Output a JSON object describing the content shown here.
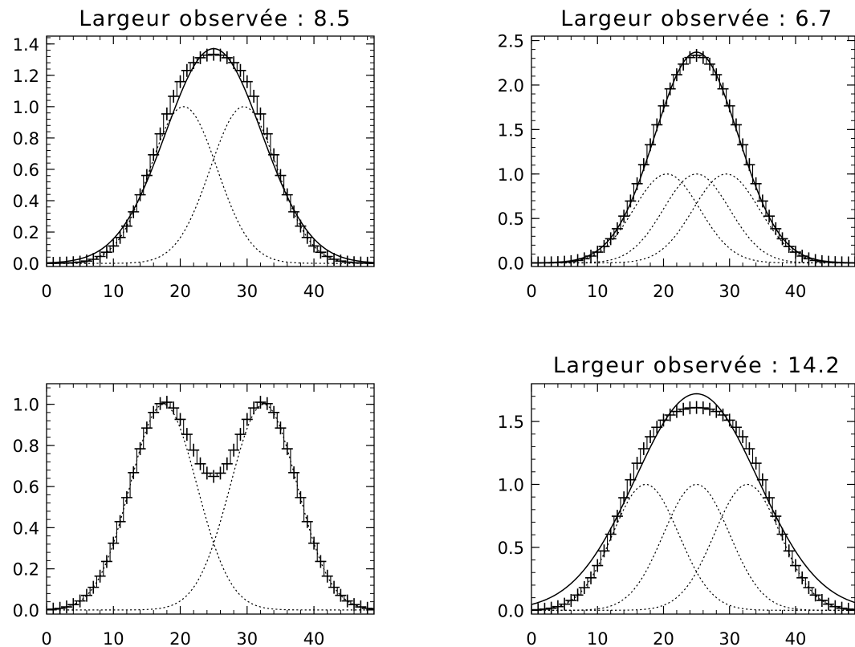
{
  "chart_data": [
    {
      "type": "line",
      "title": "Largeur observée :  8.5",
      "xlabel": "",
      "ylabel": "",
      "xlim": [
        0,
        49
      ],
      "ylim": [
        -0.02,
        1.45
      ],
      "xticks": [
        "0",
        "10",
        "20",
        "30",
        "40"
      ],
      "yticks": [
        "0.0",
        "0.2",
        "0.4",
        "0.6",
        "0.8",
        "1.0",
        "1.2",
        "1.4"
      ],
      "x_tick_values": [
        0,
        10,
        20,
        30,
        40
      ],
      "y_tick_values": [
        0.0,
        0.2,
        0.4,
        0.6,
        0.8,
        1.0,
        1.2,
        1.4
      ],
      "components": [
        {
          "center": 20.5,
          "sigma": 5.0,
          "amplitude": 1.0
        },
        {
          "center": 29.5,
          "sigma": 5.0,
          "amplitude": 1.0
        }
      ],
      "fit": {
        "center": 25,
        "sigma": 7.2,
        "amplitude": 1.37
      },
      "grid": false,
      "legend": "none"
    },
    {
      "type": "line",
      "title": "Largeur observée :  6.7",
      "xlabel": "",
      "ylabel": "",
      "xlim": [
        0,
        49
      ],
      "ylim": [
        -0.04,
        2.55
      ],
      "xticks": [
        "0",
        "10",
        "20",
        "30",
        "40"
      ],
      "yticks": [
        "0.0",
        "0.5",
        "1.0",
        "1.5",
        "2.0",
        "2.5"
      ],
      "x_tick_values": [
        0,
        10,
        20,
        30,
        40
      ],
      "y_tick_values": [
        0.0,
        0.5,
        1.0,
        1.5,
        2.0,
        2.5
      ],
      "components": [
        {
          "center": 20.5,
          "sigma": 5.0,
          "amplitude": 1.0
        },
        {
          "center": 25,
          "sigma": 5.0,
          "amplitude": 1.0
        },
        {
          "center": 29.5,
          "sigma": 5.0,
          "amplitude": 1.0
        }
      ],
      "fit": {
        "center": 25,
        "sigma": 6.3,
        "amplitude": 2.37
      },
      "grid": false,
      "legend": "none"
    },
    {
      "type": "line",
      "title": "",
      "xlabel": "",
      "ylabel": "",
      "xlim": [
        0,
        49
      ],
      "ylim": [
        -0.02,
        1.1
      ],
      "xticks": [
        "0",
        "10",
        "20",
        "30",
        "40"
      ],
      "yticks": [
        "0.0",
        "0.2",
        "0.4",
        "0.6",
        "0.8",
        "1.0"
      ],
      "x_tick_values": [
        0,
        10,
        20,
        30,
        40
      ],
      "y_tick_values": [
        0.0,
        0.2,
        0.4,
        0.6,
        0.8,
        1.0
      ],
      "components": [
        {
          "center": 17.5,
          "sigma": 5.0,
          "amplitude": 1.0
        },
        {
          "center": 32.5,
          "sigma": 5.0,
          "amplitude": 1.0
        }
      ],
      "fit": null,
      "grid": false,
      "legend": "none"
    },
    {
      "type": "line",
      "title": "Largeur observée : 14.2",
      "xlabel": "",
      "ylabel": "",
      "xlim": [
        0,
        49
      ],
      "ylim": [
        -0.03,
        1.8
      ],
      "xticks": [
        "0",
        "10",
        "20",
        "30",
        "40"
      ],
      "yticks": [
        "0.0",
        "0.5",
        "1.0",
        "1.5"
      ],
      "x_tick_values": [
        0,
        10,
        20,
        30,
        40
      ],
      "y_tick_values": [
        0.0,
        0.5,
        1.0,
        1.5
      ],
      "components": [
        {
          "center": 17.3,
          "sigma": 5.0,
          "amplitude": 1.0
        },
        {
          "center": 25,
          "sigma": 5.0,
          "amplitude": 1.0
        },
        {
          "center": 32.7,
          "sigma": 5.0,
          "amplitude": 1.0
        }
      ],
      "fit": {
        "center": 25,
        "sigma": 9.3,
        "amplitude": 1.72
      },
      "grid": false,
      "legend": "none"
    }
  ]
}
